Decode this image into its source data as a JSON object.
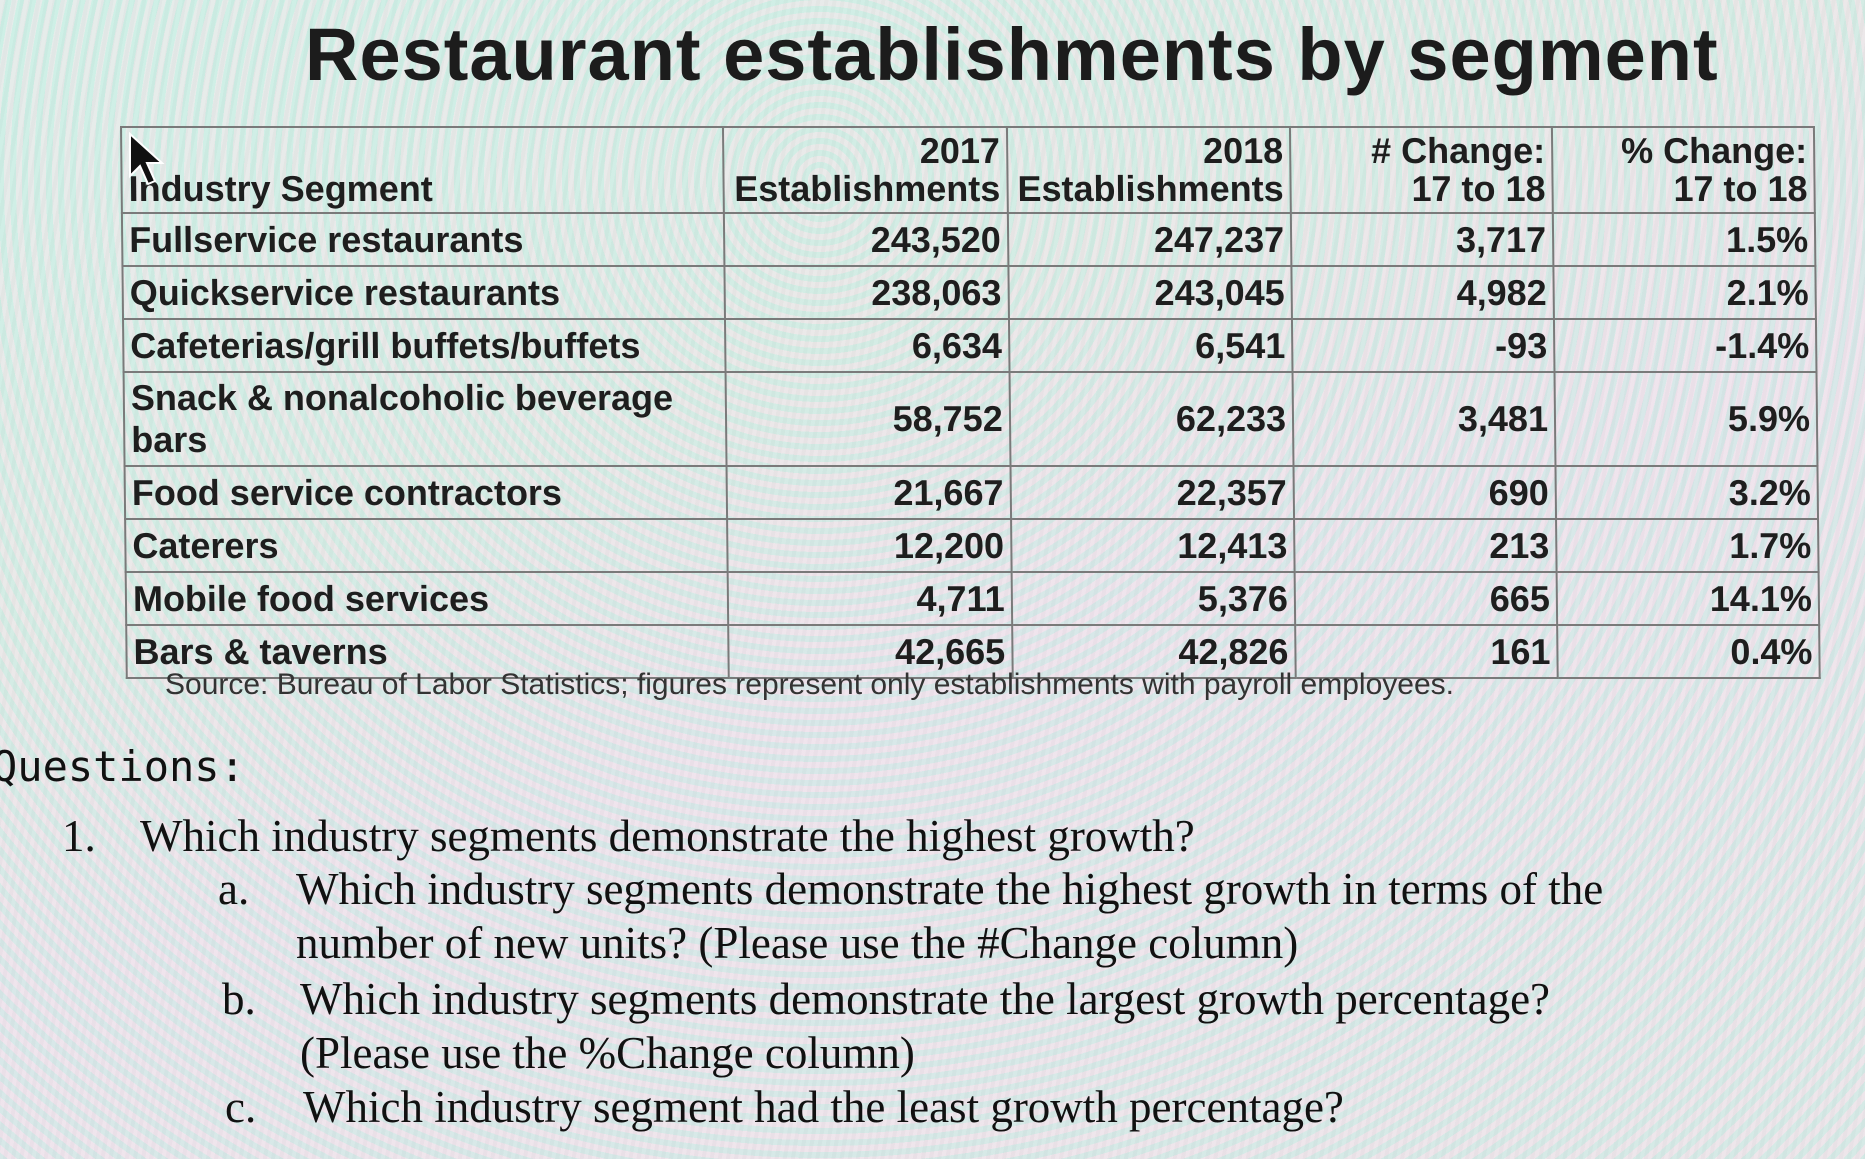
{
  "title": "Restaurant establishments by segment",
  "table": {
    "headers": {
      "segment": "Industry Segment",
      "y2017_line1": "2017",
      "y2017_line2": "Establishments",
      "y2018_line1": "2018",
      "y2018_line2": "Establishments",
      "num_change_line1": "# Change:",
      "num_change_line2": "17 to 18",
      "pct_change_line1": "% Change:",
      "pct_change_line2": "17 to 18"
    },
    "rows": [
      {
        "segment": "Fullservice restaurants",
        "y2017": "243,520",
        "y2018": "247,237",
        "num_change": "3,717",
        "pct_change": "1.5%"
      },
      {
        "segment": "Quickservice restaurants",
        "y2017": "238,063",
        "y2018": "243,045",
        "num_change": "4,982",
        "pct_change": "2.1%"
      },
      {
        "segment": "Cafeterias/grill buffets/buffets",
        "y2017": "6,634",
        "y2018": "6,541",
        "num_change": "-93",
        "pct_change": "-1.4%"
      },
      {
        "segment": "Snack & nonalcoholic beverage bars",
        "y2017": "58,752",
        "y2018": "62,233",
        "num_change": "3,481",
        "pct_change": "5.9%"
      },
      {
        "segment": "Food service contractors",
        "y2017": "21,667",
        "y2018": "22,357",
        "num_change": "690",
        "pct_change": "3.2%"
      },
      {
        "segment": "Caterers",
        "y2017": "12,200",
        "y2018": "12,413",
        "num_change": "213",
        "pct_change": "1.7%"
      },
      {
        "segment": "Mobile food services",
        "y2017": "4,711",
        "y2018": "5,376",
        "num_change": "665",
        "pct_change": "14.1%"
      },
      {
        "segment": "Bars & taverns",
        "y2017": "42,665",
        "y2018": "42,826",
        "num_change": "161",
        "pct_change": "0.4%"
      }
    ]
  },
  "source": "Source: Bureau of Labor Statistics; figures represent only establishments with payroll employees.",
  "questions": {
    "heading": "Questions:",
    "q1": {
      "number": "1.",
      "text": "Which industry segments demonstrate the highest growth?"
    },
    "sub": [
      {
        "letter": "a.",
        "line1": "Which industry segments demonstrate the highest growth in terms of the",
        "line2": "number of new units? (Please use the #Change column)"
      },
      {
        "letter": "b.",
        "line1": "Which industry segments demonstrate the largest growth percentage?",
        "line2": "(Please use the %Change column)"
      },
      {
        "letter": "c.",
        "line1": "Which industry segment had the least growth percentage?",
        "line2": ""
      }
    ]
  }
}
